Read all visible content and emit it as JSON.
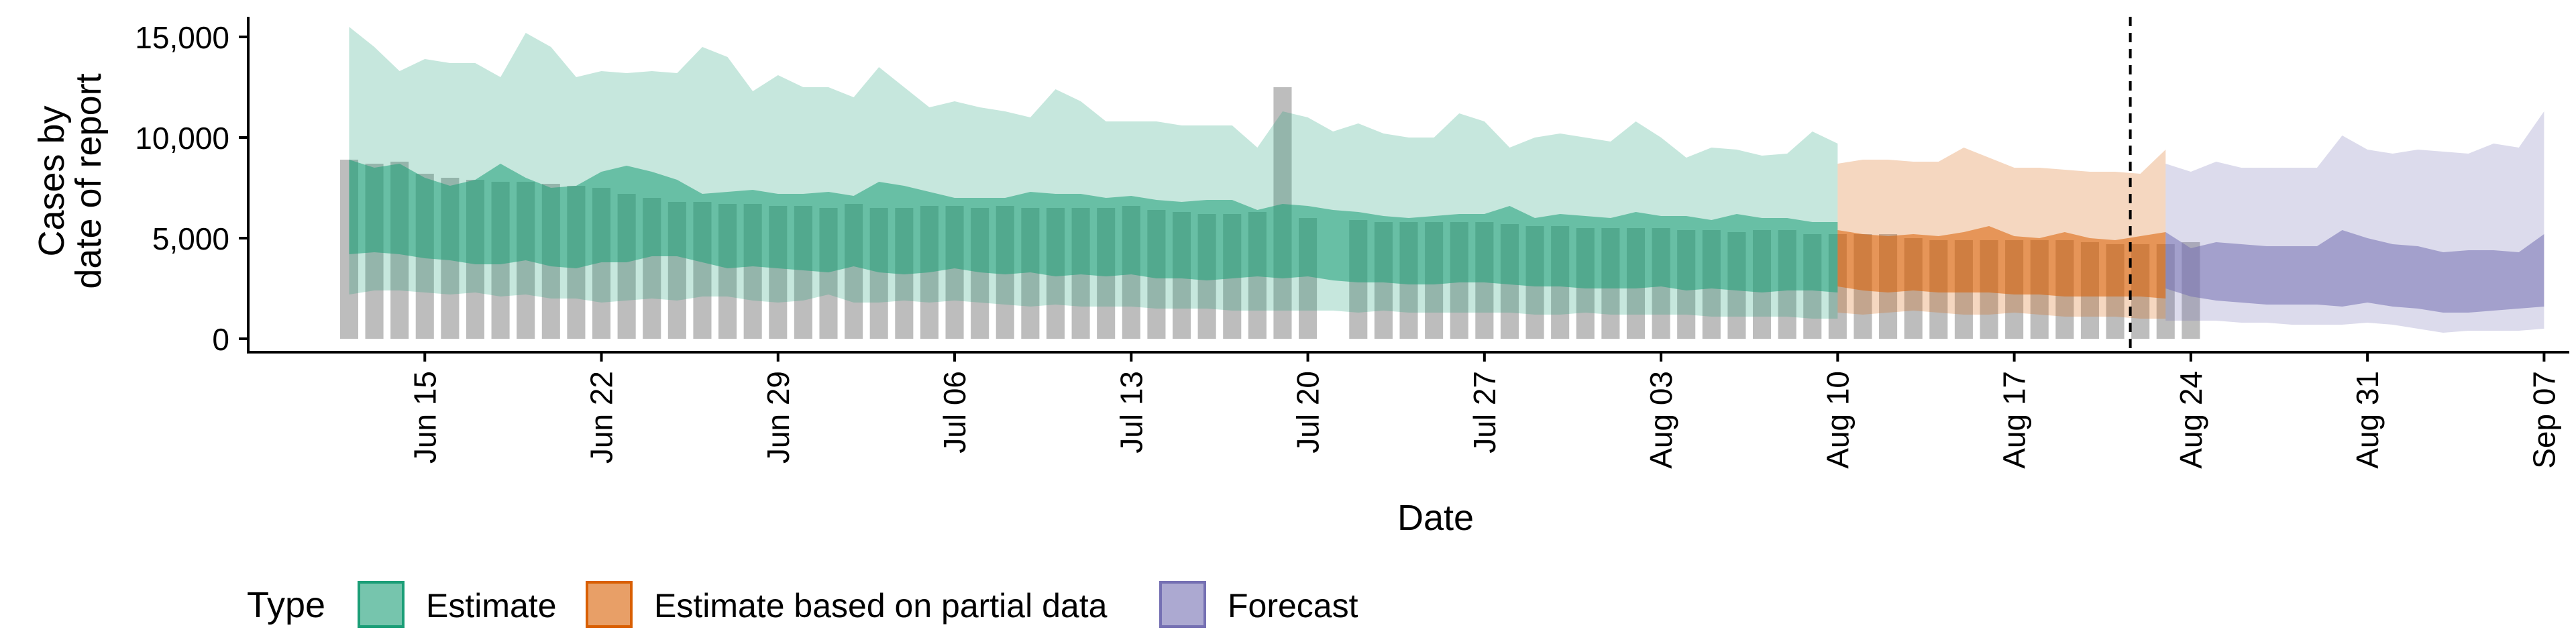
{
  "chart_data": {
    "type": "area",
    "title": "",
    "xlabel": "Date",
    "ylabel_lines": [
      "Cases by",
      "date of report"
    ],
    "x_start": "2021-06-12",
    "xlim": [
      "2021-06-08",
      "2021-09-08"
    ],
    "ylim": [
      0,
      16000
    ],
    "y_ticks": [
      0,
      5000,
      10000,
      15000
    ],
    "y_tick_labels": [
      "0",
      "5,000",
      "10,000",
      "15,000"
    ],
    "x_tick_labels": [
      "Jun 15",
      "Jun 22",
      "Jun 29",
      "Jul 06",
      "Jul 13",
      "Jul 20",
      "Jul 27",
      "Aug 03",
      "Aug 10",
      "Aug 17",
      "Aug 24",
      "Aug 31",
      "Sep 07"
    ],
    "x_tick_dates": [
      "2021-06-15",
      "2021-06-22",
      "2021-06-29",
      "2021-07-06",
      "2021-07-13",
      "2021-07-20",
      "2021-07-27",
      "2021-08-03",
      "2021-08-10",
      "2021-08-17",
      "2021-08-24",
      "2021-08-31",
      "2021-09-07"
    ],
    "forecast_date": "2021-08-22",
    "grid": false,
    "legend": {
      "title": "Type",
      "placement": "bottom",
      "entries": [
        {
          "label": "Estimate",
          "color": "#1B9E77"
        },
        {
          "label": "Estimate based on partial data",
          "color": "#D95F02"
        },
        {
          "label": "Forecast",
          "color": "#7570B3"
        }
      ]
    },
    "observed_cases": [
      8900,
      8700,
      8800,
      8200,
      8000,
      7900,
      7800,
      7800,
      7700,
      7600,
      7500,
      7200,
      7000,
      6800,
      6800,
      6700,
      6700,
      6600,
      6600,
      6500,
      6700,
      6500,
      6500,
      6600,
      6600,
      6500,
      6600,
      6500,
      6500,
      6500,
      6500,
      6600,
      6400,
      6300,
      6200,
      6200,
      6300,
      12500,
      6000,
      0,
      5900,
      5800,
      5800,
      5800,
      5800,
      5800,
      5700,
      5600,
      5600,
      5500,
      5500,
      5500,
      5500,
      5400,
      5400,
      5300,
      5400,
      5400,
      5200,
      5200,
      5200,
      5200,
      5000,
      4900,
      4900,
      4900,
      4900,
      4900,
      4900,
      4800,
      4700,
      4700,
      4700,
      4800
    ],
    "bands": [
      {
        "type": "Estimate",
        "start": "2021-06-12",
        "outer_lower": [
          2200,
          2400,
          2400,
          2300,
          2200,
          2300,
          2100,
          2200,
          2000,
          2000,
          1800,
          1900,
          2000,
          1900,
          2100,
          2100,
          1900,
          1800,
          1900,
          2200,
          1800,
          1800,
          1900,
          1800,
          1900,
          1800,
          1700,
          1600,
          1700,
          1600,
          1600,
          1600,
          1500,
          1500,
          1500,
          1400,
          1400,
          1400,
          1400,
          1400,
          1300,
          1400,
          1300,
          1300,
          1300,
          1300,
          1300,
          1200,
          1200,
          1300,
          1200,
          1200,
          1200,
          1200,
          1100,
          1100,
          1100,
          1100,
          1000,
          1000
        ],
        "inner_lower": [
          4200,
          4300,
          4200,
          4000,
          3900,
          3700,
          3700,
          3900,
          3600,
          3500,
          3800,
          3800,
          4100,
          4100,
          3800,
          3500,
          3600,
          3500,
          3400,
          3300,
          3600,
          3300,
          3200,
          3300,
          3500,
          3300,
          3200,
          3300,
          3100,
          3200,
          3100,
          3200,
          3000,
          3000,
          2900,
          3000,
          3100,
          3000,
          3100,
          2900,
          2800,
          2800,
          2700,
          2700,
          2800,
          2800,
          2700,
          2600,
          2600,
          2500,
          2500,
          2500,
          2600,
          2400,
          2500,
          2400,
          2300,
          2400,
          2400,
          2300
        ],
        "inner_upper": [
          8900,
          8500,
          8700,
          8000,
          7600,
          7900,
          8700,
          8000,
          7500,
          7600,
          8300,
          8600,
          8300,
          7900,
          7200,
          7300,
          7400,
          7200,
          7200,
          7300,
          7100,
          7800,
          7600,
          7300,
          7000,
          7000,
          7000,
          7300,
          7200,
          7200,
          7000,
          7100,
          6900,
          6800,
          6900,
          6900,
          6400,
          6700,
          6600,
          6400,
          6300,
          6100,
          6000,
          6100,
          6200,
          6200,
          6600,
          6000,
          6200,
          6100,
          6000,
          6300,
          6100,
          6100,
          5900,
          6200,
          6000,
          6000,
          5800,
          5800
        ],
        "outer_upper": [
          15500,
          14500,
          13300,
          13900,
          13700,
          13700,
          13000,
          15200,
          14500,
          13000,
          13300,
          13200,
          13300,
          13200,
          14500,
          14000,
          12300,
          13100,
          12500,
          12500,
          12000,
          13500,
          12500,
          11500,
          11800,
          11500,
          11300,
          11000,
          12400,
          11800,
          10800,
          10800,
          10800,
          10600,
          10600,
          10600,
          9500,
          11300,
          11000,
          10300,
          10700,
          10200,
          10000,
          10000,
          11200,
          10800,
          9500,
          10000,
          10200,
          10000,
          9800,
          10800,
          10000,
          9000,
          9500,
          9400,
          9100,
          9200,
          10300,
          9700
        ]
      },
      {
        "type": "Estimate based on partial data",
        "start": "2021-08-10",
        "outer_lower": [
          1300,
          1200,
          1300,
          1400,
          1300,
          1200,
          1200,
          1300,
          1200,
          1100,
          1100,
          1100,
          1000,
          1000
        ],
        "inner_lower": [
          2600,
          2400,
          2300,
          2400,
          2300,
          2300,
          2300,
          2200,
          2200,
          2100,
          2100,
          2100,
          2100,
          2000
        ],
        "inner_upper": [
          5400,
          5200,
          5100,
          5200,
          5100,
          5300,
          5600,
          5100,
          5000,
          5300,
          5000,
          4900,
          5100,
          5300
        ],
        "outer_upper": [
          8700,
          8900,
          8900,
          8800,
          8800,
          9500,
          9000,
          8500,
          8500,
          8400,
          8300,
          8300,
          8200,
          9400
        ]
      },
      {
        "type": "Forecast",
        "start": "2021-08-23",
        "outer_lower": [
          900,
          900,
          900,
          800,
          800,
          700,
          700,
          700,
          800,
          700,
          500,
          300,
          400,
          400,
          400,
          500
        ],
        "inner_lower": [
          2500,
          2100,
          1900,
          1800,
          1700,
          1700,
          1700,
          1600,
          1800,
          1600,
          1500,
          1300,
          1300,
          1400,
          1500,
          1600
        ],
        "inner_upper": [
          5300,
          4500,
          4800,
          4700,
          4600,
          4600,
          4600,
          5400,
          5000,
          4700,
          4600,
          4300,
          4400,
          4400,
          4300,
          5200
        ],
        "outer_upper": [
          8700,
          8300,
          8800,
          8500,
          8500,
          8500,
          8500,
          10100,
          9400,
          9200,
          9400,
          9300,
          9200,
          9700,
          9500,
          11300
        ]
      }
    ]
  }
}
